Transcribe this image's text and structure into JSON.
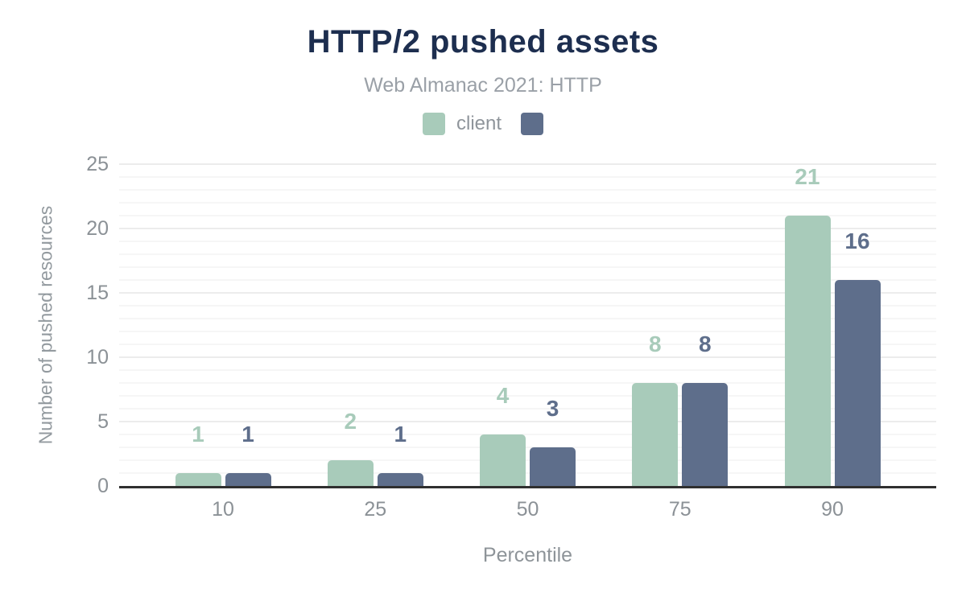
{
  "header": {
    "title": "HTTP/2 pushed assets",
    "subtitle": "Web Almanac 2021: HTTP"
  },
  "chart_data": {
    "type": "bar",
    "categories": [
      "10",
      "25",
      "50",
      "75",
      "90"
    ],
    "series": [
      {
        "name": "client",
        "color": "#a8cbba",
        "values": [
          1,
          2,
          4,
          8,
          21
        ]
      },
      {
        "name": "",
        "color": "#5e6e8b",
        "values": [
          1,
          1,
          3,
          8,
          16
        ]
      }
    ],
    "title": "HTTP/2 pushed assets",
    "subtitle": "Web Almanac 2021: HTTP",
    "xlabel": "Percentile",
    "ylabel": "Number of pushed resources",
    "ylim": [
      0,
      25
    ],
    "yticks": [
      0,
      5,
      10,
      15,
      20,
      25
    ],
    "minor_grid_step": 1,
    "grid": "horizontal",
    "legend_position": "top",
    "data_labels": true
  },
  "colors": {
    "title": "#1d2e4f",
    "subtitle_text": "#9aa0a7",
    "tick_text": "#8b9196",
    "axis_line": "#2f2f2f",
    "grid_minor": "#f6f6f6",
    "grid_major": "#ececec",
    "series_client": "#a8cbba",
    "series_second": "#5e6e8b",
    "background": "#ffffff"
  }
}
